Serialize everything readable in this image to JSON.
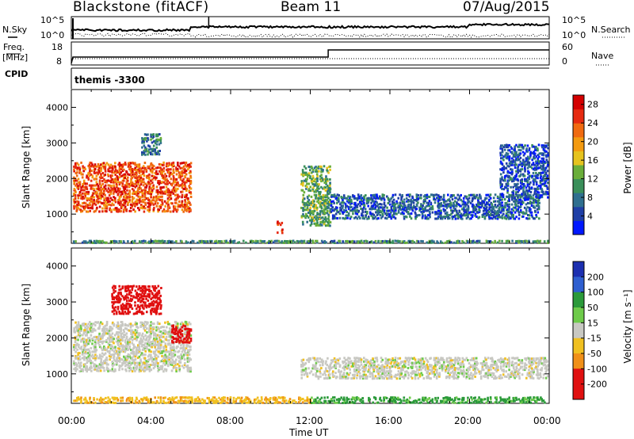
{
  "header": {
    "station": "Blackstone (fitACF)",
    "beam": "Beam 11",
    "date": "07/Aug/2015"
  },
  "top_panel": {
    "left_label": "N.Sky",
    "right_label": "N.Search",
    "left_ticks": [
      "10^5",
      "10^0"
    ],
    "right_ticks": [
      "10^5",
      "10^0"
    ]
  },
  "freq_panel": {
    "left_label": "Freq.",
    "left_unit": "[MHz]",
    "right_label": "Nave",
    "left_ticks": [
      "18",
      "8"
    ],
    "right_ticks": [
      "60",
      "0"
    ]
  },
  "cpid": {
    "label": "CPID",
    "value": "themis -3300"
  },
  "xaxis": {
    "label": "Time UT",
    "ticks": [
      "00:00",
      "04:00",
      "08:00",
      "12:00",
      "16:00",
      "20:00",
      "00:00"
    ]
  },
  "power_panel": {
    "ylabel": "Slant Range [km]",
    "cbar_label": "Power [dB]"
  },
  "velocity_panel": {
    "ylabel": "Slant Range [km]",
    "cbar_label": "Velocity [m s⁻¹]"
  },
  "chart_data": [
    {
      "type": "heatmap",
      "title": "Power",
      "xlabel": "Time UT",
      "ylabel": "Slant Range [km]",
      "xlim": [
        0,
        24
      ],
      "ylim": [
        180,
        4500
      ],
      "yticks": [
        1000,
        2000,
        3000,
        4000
      ],
      "colorbar": {
        "label": "Power [dB]",
        "ticks": [
          4,
          8,
          12,
          16,
          20,
          24,
          28
        ],
        "range": [
          0,
          30
        ]
      },
      "echo_regions": [
        {
          "t": [
            0.0,
            6.0
          ],
          "range": [
            1100,
            2500
          ],
          "value": 24
        },
        {
          "t": [
            3.5,
            4.5
          ],
          "range": [
            2700,
            3300
          ],
          "value": 8
        },
        {
          "t": [
            10.3,
            10.6
          ],
          "range": [
            500,
            900
          ],
          "value": 26
        },
        {
          "t": [
            11.5,
            13.0
          ],
          "range": [
            700,
            2400
          ],
          "value": 12
        },
        {
          "t": [
            13.0,
            23.5
          ],
          "range": [
            900,
            1600
          ],
          "value": 6
        },
        {
          "t": [
            21.5,
            24.0
          ],
          "range": [
            1500,
            3000
          ],
          "value": 5
        },
        {
          "t": [
            0.0,
            24.0
          ],
          "range": [
            180,
            300
          ],
          "value": 10
        }
      ]
    },
    {
      "type": "heatmap",
      "title": "Velocity",
      "xlabel": "Time UT",
      "ylabel": "Slant Range [km]",
      "xlim": [
        0,
        24
      ],
      "ylim": [
        180,
        4500
      ],
      "yticks": [
        1000,
        2000,
        3000,
        4000
      ],
      "colorbar": {
        "label": "Velocity [m s⁻¹]",
        "ticks": [
          200,
          100,
          50,
          15,
          -15,
          -50,
          -100,
          -200
        ],
        "range": [
          -250,
          250
        ]
      },
      "echo_regions": [
        {
          "t": [
            0.0,
            6.0
          ],
          "range": [
            1100,
            2500
          ],
          "value": 0
        },
        {
          "t": [
            2.0,
            4.5
          ],
          "range": [
            2700,
            3500
          ],
          "value": -200
        },
        {
          "t": [
            5.0,
            6.0
          ],
          "range": [
            1900,
            2400
          ],
          "value": -200
        },
        {
          "t": [
            11.5,
            24.0
          ],
          "range": [
            900,
            1500
          ],
          "value": 0
        },
        {
          "t": [
            0.0,
            12.0
          ],
          "range": [
            180,
            400
          ],
          "value": -40
        },
        {
          "t": [
            12.0,
            24.0
          ],
          "range": [
            180,
            400
          ],
          "value": 40
        }
      ]
    }
  ]
}
